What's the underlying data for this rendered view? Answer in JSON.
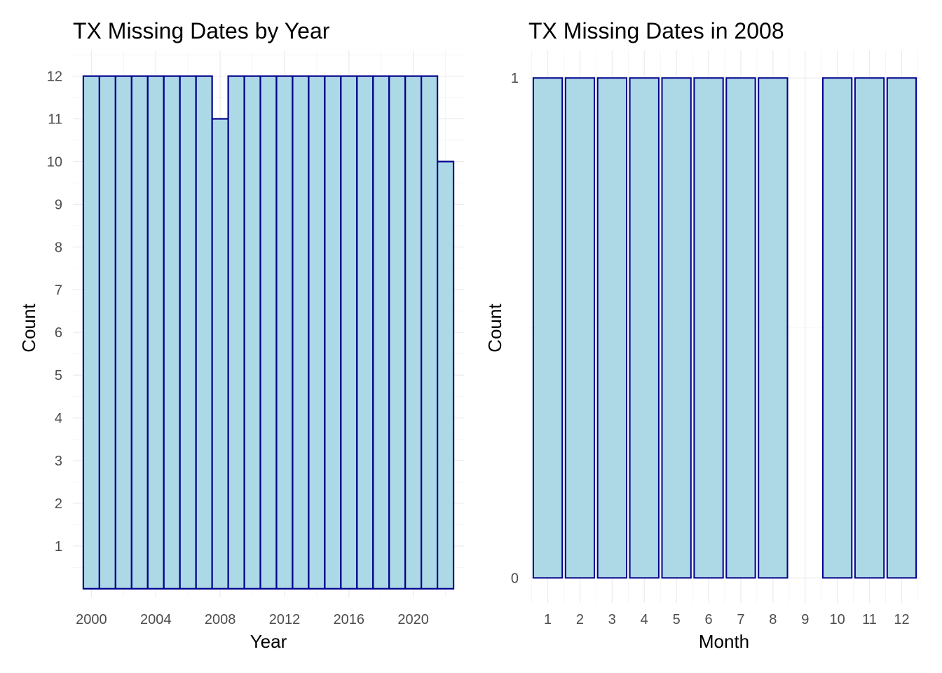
{
  "chart_data": [
    {
      "type": "bar",
      "title": "TX Missing Dates by Year",
      "xlabel": "Year",
      "ylabel": "Count",
      "x": [
        2000,
        2001,
        2002,
        2003,
        2004,
        2005,
        2006,
        2007,
        2008,
        2009,
        2010,
        2011,
        2012,
        2013,
        2014,
        2015,
        2016,
        2017,
        2018,
        2019,
        2020,
        2021,
        2022
      ],
      "values": [
        12,
        12,
        12,
        12,
        12,
        12,
        12,
        12,
        11,
        12,
        12,
        12,
        12,
        12,
        12,
        12,
        12,
        12,
        12,
        12,
        12,
        12,
        10
      ],
      "x_ticks": [
        2000,
        2004,
        2008,
        2012,
        2016,
        2020
      ],
      "y_ticks": [
        1,
        2,
        3,
        4,
        5,
        6,
        7,
        8,
        9,
        10,
        11,
        12
      ],
      "xlim": [
        1998.85,
        2023.15
      ],
      "ylim": [
        -0.2,
        12.6
      ],
      "fill_color": "#add8e6",
      "border_color": "#00008b",
      "grid": true
    },
    {
      "type": "bar",
      "title": "TX Missing Dates in 2008",
      "xlabel": "Month",
      "ylabel": "Count",
      "categories": [
        "1",
        "2",
        "3",
        "4",
        "5",
        "6",
        "7",
        "8",
        "9",
        "10",
        "11",
        "12"
      ],
      "values": [
        1,
        1,
        1,
        1,
        1,
        1,
        1,
        1,
        0,
        1,
        1,
        1
      ],
      "y_ticks": [
        0,
        1
      ],
      "ylim": [
        -0.05,
        1.055
      ],
      "fill_color": "#add8e6",
      "border_color": "#00008b",
      "grid": true
    }
  ]
}
